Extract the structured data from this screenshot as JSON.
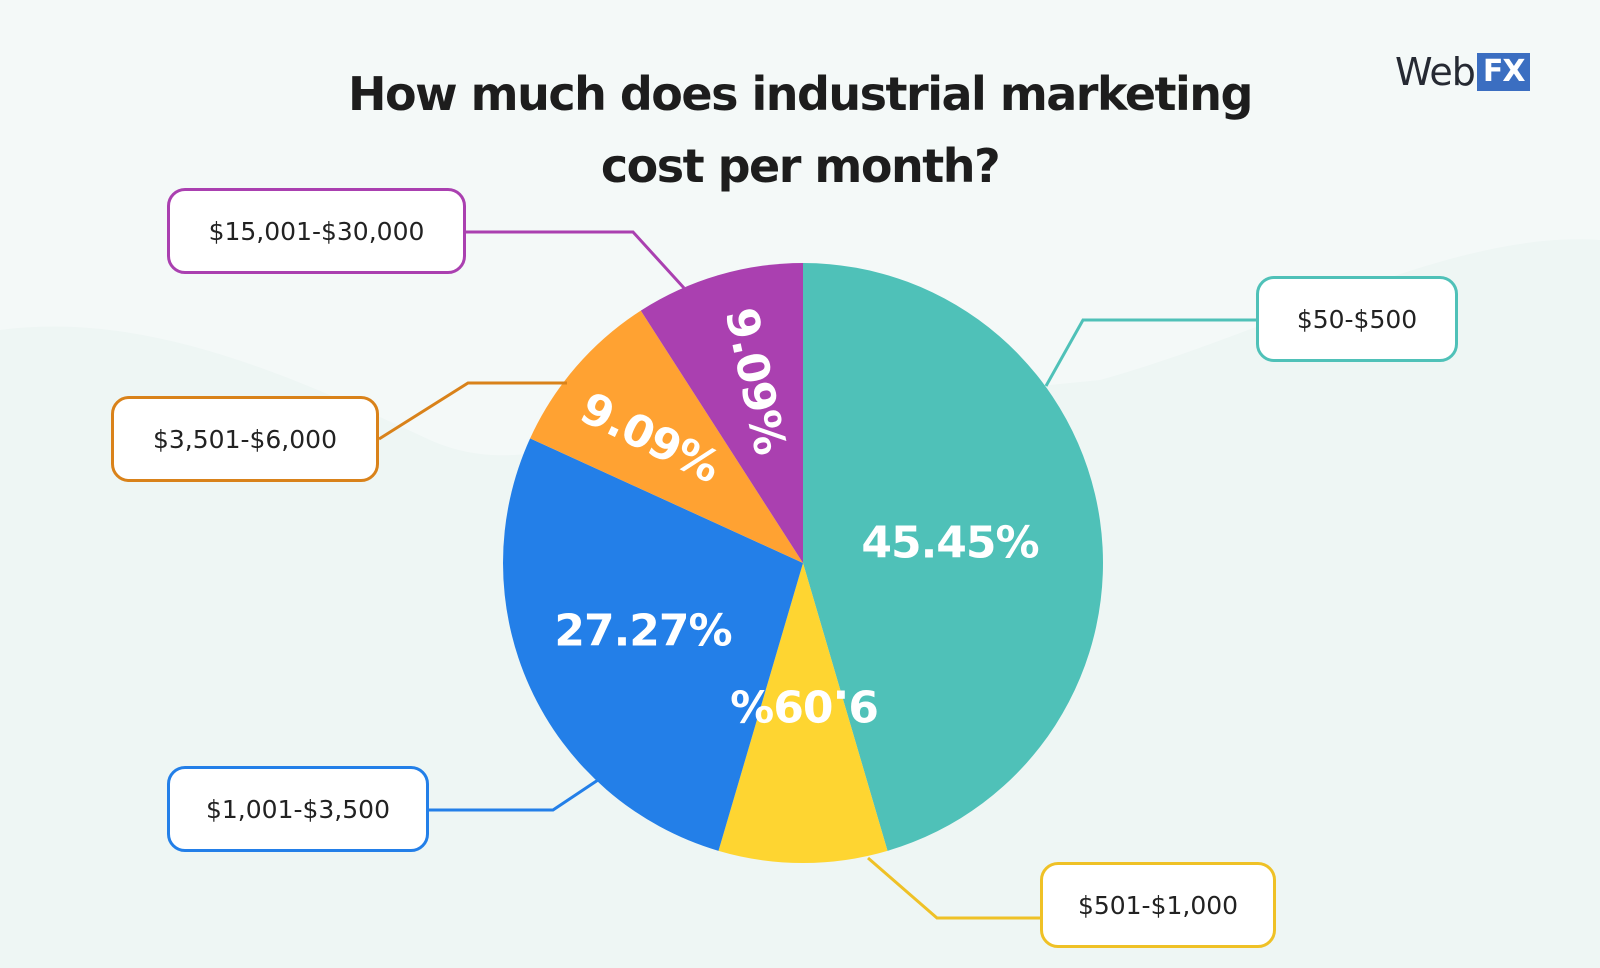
{
  "brand": {
    "word": "Web",
    "mark": "FX",
    "accent": "#3b6ec1"
  },
  "chart_data": {
    "type": "pie",
    "title": "How much does industrial marketing cost per month?",
    "title_lines": [
      "How much does industrial marketing",
      "cost per month?"
    ],
    "slices": [
      {
        "label": "$50-$500",
        "value": 45.45,
        "value_label": "45.45%",
        "color": "#4fc1b8",
        "line_color": "#4fc1b8"
      },
      {
        "label": "$501-$1,000",
        "value": 9.09,
        "value_label": "9.09%",
        "color": "#fed531",
        "line_color": "#efc126"
      },
      {
        "label": "$1,001-$3,500",
        "value": 27.27,
        "value_label": "27.27%",
        "color": "#237fe8",
        "line_color": "#237fe8"
      },
      {
        "label": "$3,501-$6,000",
        "value": 9.09,
        "value_label": "9.09%",
        "color": "#ffa232",
        "line_color": "#d9821a"
      },
      {
        "label": "$15,001-$30,000",
        "value": 9.09,
        "value_label": "9.09%",
        "color": "#aa40b0",
        "line_color": "#aa40b0"
      }
    ],
    "start": "12 o'clock",
    "direction": "clockwise",
    "legend": "callout boxes around pie"
  }
}
